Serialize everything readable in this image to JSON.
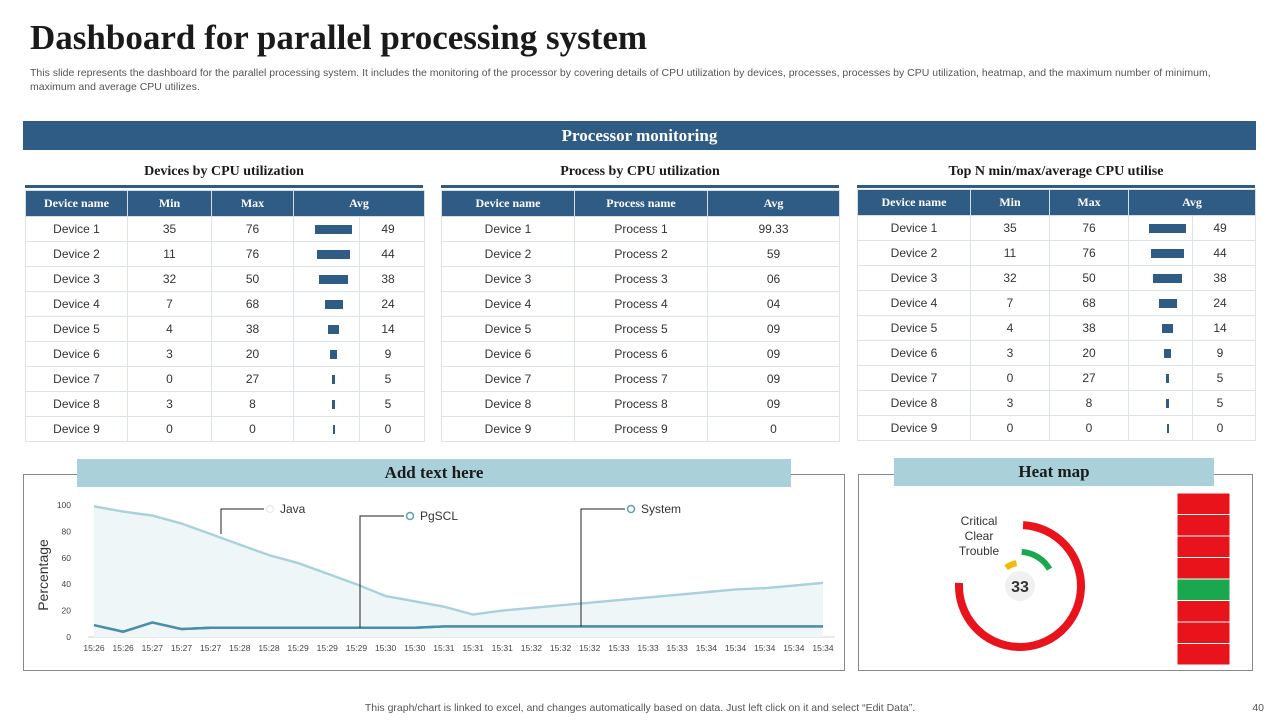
{
  "header": {
    "title": "Dashboard for parallel processing system",
    "description": "This slide represents the dashboard for the parallel processing system. It includes the monitoring of the processor by covering details of CPU utilization by devices, processes, processes by CPU utilization, heatmap, and the maximum number of minimum, maximum and average CPU utilizes."
  },
  "banner": "Processor monitoring",
  "colors": {
    "primary": "#2f5c84",
    "light_header": "#aad1da",
    "critical": "#e8131b",
    "clear": "#1aa84f",
    "trouble": "#f2b90f",
    "line_java": "#a9d1db",
    "line_system": "#4a8ea8"
  },
  "panels": {
    "devices": {
      "title": "Devices by CPU utilization",
      "headers": [
        "Device name",
        "Min",
        "Max",
        "Avg"
      ],
      "rows": [
        {
          "name": "Device 1",
          "min": "35",
          "max": "76",
          "avg": 49
        },
        {
          "name": "Device 2",
          "min": "11",
          "max": "76",
          "avg": 44
        },
        {
          "name": "Device 3",
          "min": "32",
          "max": "50",
          "avg": 38
        },
        {
          "name": "Device 4",
          "min": "7",
          "max": "68",
          "avg": 24
        },
        {
          "name": "Device 5",
          "min": "4",
          "max": "38",
          "avg": 14
        },
        {
          "name": "Device 6",
          "min": "3",
          "max": "20",
          "avg": 9
        },
        {
          "name": "Device 7",
          "min": "0",
          "max": "27",
          "avg": 5
        },
        {
          "name": "Device 8",
          "min": "3",
          "max": "8",
          "avg": 5
        },
        {
          "name": "Device 9",
          "min": "0",
          "max": "0",
          "avg": 0
        }
      ]
    },
    "processes": {
      "title": "Process by CPU utilization",
      "headers": [
        "Device name",
        "Process name",
        "Avg"
      ],
      "rows": [
        {
          "name": "Device 1",
          "process": "Process 1",
          "avg": "99.33"
        },
        {
          "name": "Device 2",
          "process": "Process 2",
          "avg": "59"
        },
        {
          "name": "Device 3",
          "process": "Process 3",
          "avg": "06"
        },
        {
          "name": "Device 4",
          "process": "Process 4",
          "avg": "04"
        },
        {
          "name": "Device 5",
          "process": "Process 5",
          "avg": "09"
        },
        {
          "name": "Device 6",
          "process": "Process 6",
          "avg": "09"
        },
        {
          "name": "Device 7",
          "process": "Process 7",
          "avg": "09"
        },
        {
          "name": "Device 8",
          "process": "Process 8",
          "avg": "09"
        },
        {
          "name": "Device 9",
          "process": "Process 9",
          "avg": "0"
        }
      ]
    },
    "topn": {
      "title": "Top N min/max/average  CPU utilise",
      "headers": [
        "Device name",
        "Min",
        "Max",
        "Avg"
      ],
      "rows": [
        {
          "name": "Device 1",
          "min": "35",
          "max": "76",
          "avg": 49
        },
        {
          "name": "Device 2",
          "min": "11",
          "max": "76",
          "avg": 44
        },
        {
          "name": "Device 3",
          "min": "32",
          "max": "50",
          "avg": 38
        },
        {
          "name": "Device 4",
          "min": "7",
          "max": "68",
          "avg": 24
        },
        {
          "name": "Device 5",
          "min": "4",
          "max": "38",
          "avg": 14
        },
        {
          "name": "Device 6",
          "min": "3",
          "max": "20",
          "avg": 9
        },
        {
          "name": "Device 7",
          "min": "0",
          "max": "27",
          "avg": 5
        },
        {
          "name": "Device 8",
          "min": "3",
          "max": "8",
          "avg": 5
        },
        {
          "name": "Device 9",
          "min": "0",
          "max": "0",
          "avg": 0
        }
      ]
    }
  },
  "chart_panel": {
    "title": "Add text here"
  },
  "chart_data": {
    "type": "area",
    "ylabel": "Percentage",
    "xlabel": "",
    "ylim": [
      0,
      100
    ],
    "yticks": [
      0,
      20,
      40,
      60,
      80,
      100
    ],
    "categories": [
      "15:26",
      "15:26",
      "15:27",
      "15:27",
      "15:27",
      "15:28",
      "15:28",
      "15:29",
      "15:29",
      "15:29",
      "15:30",
      "15:30",
      "15:31",
      "15:31",
      "15:31",
      "15:32",
      "15:32",
      "15:32",
      "15:33",
      "15:33",
      "15:33",
      "15:34",
      "15:34",
      "15:34",
      "15:34",
      "15:34"
    ],
    "series": [
      {
        "name": "Java",
        "values": [
          99,
          95,
          92,
          86,
          78,
          70,
          62,
          56,
          48,
          40,
          31,
          27,
          23,
          17,
          20,
          22,
          24,
          26,
          28,
          30,
          32,
          34,
          36,
          37,
          39,
          41
        ]
      },
      {
        "name": "PgSCL",
        "values": [
          9,
          4,
          11,
          6,
          7,
          7,
          7,
          7,
          7,
          7,
          7,
          7,
          8,
          8,
          8,
          8,
          8,
          8,
          8,
          8,
          8,
          8,
          8,
          8,
          8,
          8
        ]
      },
      {
        "name": "System",
        "values": [
          9,
          4,
          11,
          6,
          7,
          7,
          7,
          7,
          7,
          7,
          7,
          7,
          8,
          8,
          8,
          8,
          8,
          8,
          8,
          8,
          8,
          8,
          8,
          8,
          8,
          8
        ]
      }
    ],
    "legend": "callouts"
  },
  "heatmap": {
    "title": "Heat map",
    "labels": [
      "Critical",
      "Clear",
      "Trouble"
    ],
    "gauge_value": "33",
    "gauge_fraction": 0.75,
    "cells": [
      "critical",
      "critical",
      "critical",
      "critical",
      "clear",
      "critical",
      "critical",
      "critical"
    ]
  },
  "footer": {
    "note": "This graph/chart is linked to excel,  and changes automatically based on data. Just left click on it and select “Edit Data”.",
    "page": "40"
  }
}
